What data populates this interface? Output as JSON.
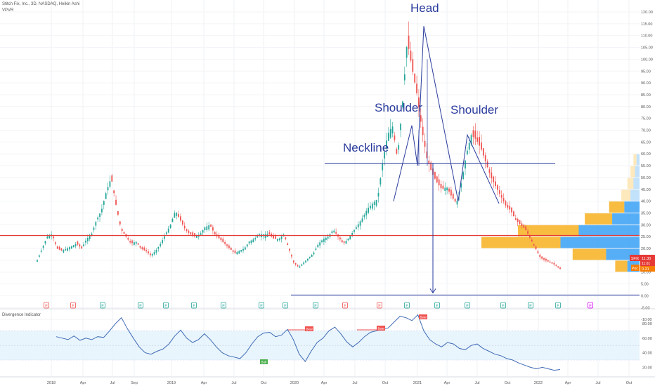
{
  "header": {
    "symbol_line": "Stitch Fix, Inc., 3D, NASDAQ, Heikin Ashi",
    "indicator": "VPVR"
  },
  "oscillator": {
    "title": "Divergence Indicator",
    "band": [
      30,
      70
    ],
    "midline": 50,
    "signal_labels": {
      "bear": "Bear",
      "bull": "Bull"
    }
  },
  "annotations": {
    "head": "Head",
    "left_shoulder": "Shoulder",
    "right_shoulder": "Shoulder",
    "neckline": "Neckline"
  },
  "price_tags": {
    "last": {
      "label": "SFIX",
      "value": "11.30",
      "sub": "11.01",
      "color": "#e53935"
    },
    "poc": {
      "label": "Poc",
      "value": "0.31",
      "color": "#f57c00"
    }
  },
  "chart_data": {
    "type": "candlestick",
    "title": "Stitch Fix, Inc., 3D, NASDAQ, Heikin Ashi",
    "price_axis": {
      "min": -10,
      "max": 120,
      "ticks": [
        "120.00",
        "115.00",
        "110.00",
        "105.00",
        "100.00",
        "95.00",
        "90.00",
        "85.00",
        "80.00",
        "75.00",
        "70.00",
        "65.00",
        "60.00",
        "55.00",
        "50.00",
        "45.00",
        "40.00",
        "35.00",
        "30.00",
        "25.00",
        "20.00",
        "15.00",
        "10.00",
        "5.00",
        "0.00",
        "-5.00",
        "-10.00"
      ]
    },
    "time_axis": [
      "2018",
      "Apr",
      "Jul",
      "Sep",
      "2019",
      "Apr",
      "Jul",
      "Oct",
      "2020",
      "Apr",
      "Jul",
      "Oct",
      "2021",
      "Apr",
      "Jul",
      "Oct",
      "2022",
      "Apr",
      "Jul",
      "Oct"
    ],
    "price_path": [
      [
        0,
        15
      ],
      [
        1,
        20
      ],
      [
        2,
        25
      ],
      [
        3,
        26
      ],
      [
        4,
        20
      ],
      [
        5,
        19
      ],
      [
        6,
        20
      ],
      [
        7,
        21
      ],
      [
        8,
        22
      ],
      [
        9,
        20
      ],
      [
        10,
        24
      ],
      [
        11,
        26
      ],
      [
        12,
        32
      ],
      [
        13,
        36
      ],
      [
        14,
        44
      ],
      [
        15,
        50
      ],
      [
        16,
        38
      ],
      [
        17,
        28
      ],
      [
        18,
        25
      ],
      [
        19,
        22
      ],
      [
        20,
        23
      ],
      [
        21,
        20
      ],
      [
        22,
        19
      ],
      [
        23,
        17
      ],
      [
        24,
        19
      ],
      [
        25,
        22
      ],
      [
        26,
        26
      ],
      [
        27,
        30
      ],
      [
        28,
        36
      ],
      [
        29,
        32
      ],
      [
        30,
        28
      ],
      [
        31,
        26
      ],
      [
        32,
        25
      ],
      [
        33,
        26
      ],
      [
        34,
        29
      ],
      [
        35,
        30
      ],
      [
        36,
        26
      ],
      [
        37,
        24
      ],
      [
        38,
        22
      ],
      [
        39,
        20
      ],
      [
        40,
        18
      ],
      [
        41,
        19
      ],
      [
        42,
        20
      ],
      [
        43,
        23
      ],
      [
        44,
        24
      ],
      [
        45,
        26
      ],
      [
        46,
        26
      ],
      [
        47,
        26
      ],
      [
        48,
        24
      ],
      [
        49,
        24
      ],
      [
        50,
        26
      ],
      [
        51,
        20
      ],
      [
        52,
        14
      ],
      [
        53,
        12
      ],
      [
        54,
        14
      ],
      [
        55,
        16
      ],
      [
        56,
        18
      ],
      [
        57,
        22
      ],
      [
        58,
        24
      ],
      [
        59,
        25
      ],
      [
        60,
        28
      ],
      [
        61,
        25
      ],
      [
        62,
        22
      ],
      [
        63,
        24
      ],
      [
        64,
        27
      ],
      [
        65,
        30
      ],
      [
        66,
        33
      ],
      [
        67,
        37
      ],
      [
        68,
        39
      ],
      [
        69,
        41
      ],
      [
        70,
        56
      ],
      [
        71,
        68
      ],
      [
        72,
        72
      ],
      [
        73,
        58
      ],
      [
        74,
        80
      ],
      [
        75,
        108
      ],
      [
        76,
        96
      ],
      [
        77,
        85
      ],
      [
        78,
        70
      ],
      [
        79,
        58
      ],
      [
        80,
        52
      ],
      [
        81,
        48
      ],
      [
        82,
        45
      ],
      [
        83,
        46
      ],
      [
        84,
        42
      ],
      [
        85,
        39
      ],
      [
        86,
        48
      ],
      [
        87,
        60
      ],
      [
        88,
        68
      ],
      [
        89,
        66
      ],
      [
        90,
        62
      ],
      [
        91,
        56
      ],
      [
        92,
        50
      ],
      [
        93,
        46
      ],
      [
        94,
        42
      ],
      [
        95,
        38
      ],
      [
        96,
        36
      ],
      [
        97,
        32
      ],
      [
        98,
        30
      ],
      [
        99,
        28
      ],
      [
        100,
        24
      ],
      [
        101,
        20
      ],
      [
        102,
        16
      ],
      [
        103,
        15
      ],
      [
        104,
        14
      ],
      [
        105,
        13
      ],
      [
        106,
        11.3
      ]
    ],
    "series": [
      {
        "type": "volume_profile",
        "levels": [
          {
            "price": 57.5,
            "value": 2
          },
          {
            "price": 52.5,
            "value": 3
          },
          {
            "price": 47.5,
            "value": 4
          },
          {
            "price": 42.5,
            "value": 6
          },
          {
            "price": 37.5,
            "value": 10
          },
          {
            "price": 32.5,
            "value": 18
          },
          {
            "price": 27.5,
            "value": 40
          },
          {
            "price": 22.5,
            "value": 52
          },
          {
            "price": 17.5,
            "value": 22
          },
          {
            "price": 12.5,
            "value": 8
          }
        ]
      },
      {
        "type": "horizontal_line",
        "name": "Neckline",
        "price": 56
      },
      {
        "type": "horizontal_line",
        "name": "support",
        "price": 25.5
      },
      {
        "type": "horizontal_line",
        "name": "target",
        "price": 0.3
      }
    ],
    "oscillator_path": [
      [
        0,
        62
      ],
      [
        2,
        60
      ],
      [
        4,
        58
      ],
      [
        6,
        63
      ],
      [
        8,
        57
      ],
      [
        10,
        60
      ],
      [
        12,
        58
      ],
      [
        14,
        62
      ],
      [
        16,
        61
      ],
      [
        18,
        70
      ],
      [
        20,
        80
      ],
      [
        22,
        88
      ],
      [
        24,
        73
      ],
      [
        26,
        60
      ],
      [
        28,
        48
      ],
      [
        30,
        40
      ],
      [
        32,
        38
      ],
      [
        34,
        42
      ],
      [
        36,
        45
      ],
      [
        38,
        52
      ],
      [
        40,
        63
      ],
      [
        42,
        71
      ],
      [
        44,
        60
      ],
      [
        46,
        54
      ],
      [
        48,
        58
      ],
      [
        50,
        66
      ],
      [
        52,
        58
      ],
      [
        54,
        48
      ],
      [
        56,
        40
      ],
      [
        58,
        36
      ],
      [
        60,
        34
      ],
      [
        62,
        32
      ],
      [
        64,
        40
      ],
      [
        66,
        52
      ],
      [
        68,
        62
      ],
      [
        70,
        67
      ],
      [
        72,
        68
      ],
      [
        74,
        62
      ],
      [
        76,
        64
      ],
      [
        78,
        72
      ],
      [
        80,
        58
      ],
      [
        82,
        38
      ],
      [
        84,
        28
      ],
      [
        86,
        42
      ],
      [
        88,
        54
      ],
      [
        90,
        60
      ],
      [
        92,
        70
      ],
      [
        94,
        75
      ],
      [
        96,
        66
      ],
      [
        98,
        55
      ],
      [
        100,
        48
      ],
      [
        102,
        54
      ],
      [
        104,
        62
      ],
      [
        106,
        68
      ],
      [
        108,
        70
      ],
      [
        110,
        72
      ],
      [
        112,
        74
      ],
      [
        114,
        82
      ],
      [
        116,
        90
      ],
      [
        118,
        88
      ],
      [
        120,
        84
      ],
      [
        122,
        92
      ],
      [
        124,
        70
      ],
      [
        126,
        58
      ],
      [
        128,
        52
      ],
      [
        130,
        48
      ],
      [
        132,
        54
      ],
      [
        134,
        52
      ],
      [
        136,
        46
      ],
      [
        138,
        44
      ],
      [
        140,
        50
      ],
      [
        142,
        52
      ],
      [
        144,
        46
      ],
      [
        146,
        42
      ],
      [
        148,
        38
      ],
      [
        150,
        36
      ],
      [
        152,
        32
      ],
      [
        154,
        30
      ],
      [
        156,
        26
      ],
      [
        158,
        23
      ],
      [
        160,
        20
      ],
      [
        162,
        18
      ],
      [
        164,
        20
      ],
      [
        166,
        18
      ],
      [
        168,
        16
      ],
      [
        170,
        17
      ]
    ],
    "osc_axis": {
      "ticks": [
        80,
        60,
        40,
        20
      ]
    }
  }
}
